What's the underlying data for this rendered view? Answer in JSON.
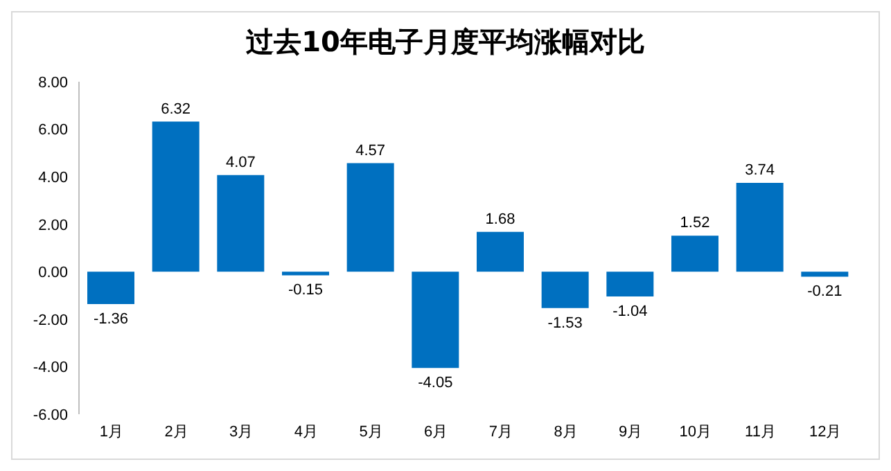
{
  "chart_data": {
    "type": "bar",
    "title": "过去10年电子月度平均涨幅对比",
    "categories": [
      "1月",
      "2月",
      "3月",
      "4月",
      "5月",
      "6月",
      "7月",
      "8月",
      "9月",
      "10月",
      "11月",
      "12月"
    ],
    "values": [
      -1.36,
      6.32,
      4.07,
      -0.15,
      4.57,
      -4.05,
      1.68,
      -1.53,
      -1.04,
      1.52,
      3.74,
      -0.21
    ],
    "color": "#0070c0",
    "ylim": [
      -6,
      8
    ],
    "yticks": [
      {
        "value": -6,
        "label": "-6.00"
      },
      {
        "value": -4,
        "label": "-4.00"
      },
      {
        "value": -2,
        "label": "-2.00"
      },
      {
        "value": 0,
        "label": "0.00"
      },
      {
        "value": 2,
        "label": "2.00"
      },
      {
        "value": 4,
        "label": "4.00"
      },
      {
        "value": 6,
        "label": "6.00"
      },
      {
        "value": 8,
        "label": "8.00"
      }
    ],
    "grid": false,
    "data_labels": true
  }
}
